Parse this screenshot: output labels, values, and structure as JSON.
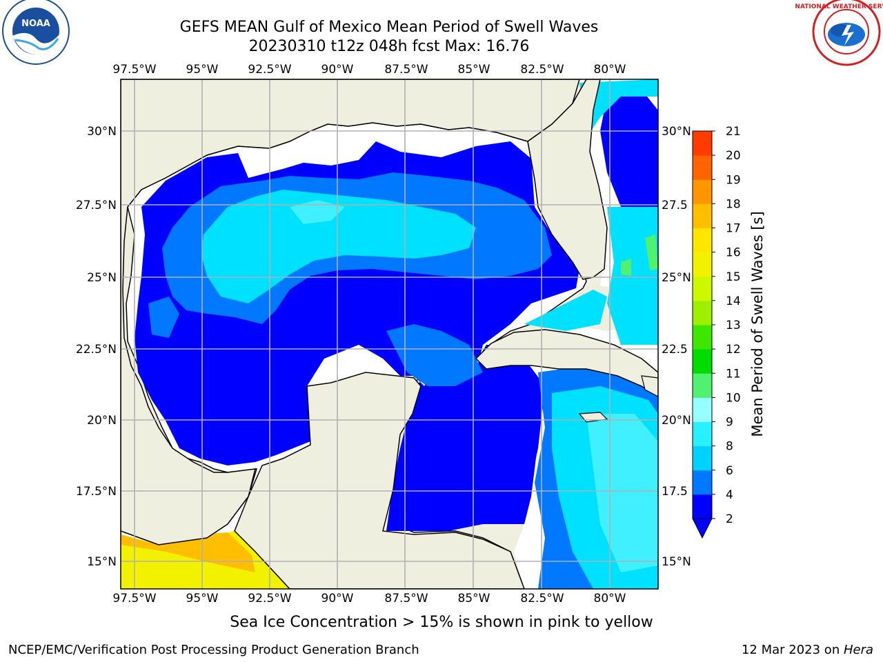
{
  "title_line1": "GEFS MEAN Gulf of Mexico Mean Period of Swell Waves",
  "title_line2": "20230310 t12z 048h fcst   Max: 16.76",
  "bottom_note": "Sea Ice Concentration > 15% is shown in pink to yellow",
  "footer_left": "NCEP/EMC/Verification Post Processing Product Generation Branch",
  "footer_date": "12 Mar 2023 on ",
  "footer_host": "Hera",
  "logos": {
    "left": "noaa-logo",
    "right": "nws-logo"
  },
  "map": {
    "lon_labels": [
      "97.5°W",
      "95°W",
      "92.5°W",
      "90°W",
      "87.5°W",
      "85°W",
      "82.5°W",
      "80°W"
    ],
    "lat_labels": [
      "30°N",
      "27.5°N",
      "25°N",
      "22.5°N",
      "20°N",
      "17.5°N",
      "15°N"
    ],
    "lat_labels_right": [
      "30°N",
      "27.5",
      "25°N",
      "22.5",
      "20°N",
      "17.5",
      "15°N"
    ],
    "land_color": "#efefdf",
    "grid_color": "#b0b0b0"
  },
  "colorbar": {
    "label": "Mean Period of Swell Waves [s]",
    "ticks": [
      "2",
      "4",
      "6",
      "8",
      "9",
      "10",
      "11",
      "12",
      "13",
      "14",
      "15",
      "16",
      "17",
      "18",
      "19",
      "20",
      "21"
    ],
    "colors": [
      "#0000ff",
      "#0078ff",
      "#00d2ff",
      "#28f0ff",
      "#96ffff",
      "#50f070",
      "#00dc00",
      "#3ee600",
      "#9ef000",
      "#cdf800",
      "#f2f200",
      "#ffe600",
      "#ffbe00",
      "#ff9600",
      "#ff6400",
      "#ff3c00",
      "#ff0000"
    ]
  }
}
